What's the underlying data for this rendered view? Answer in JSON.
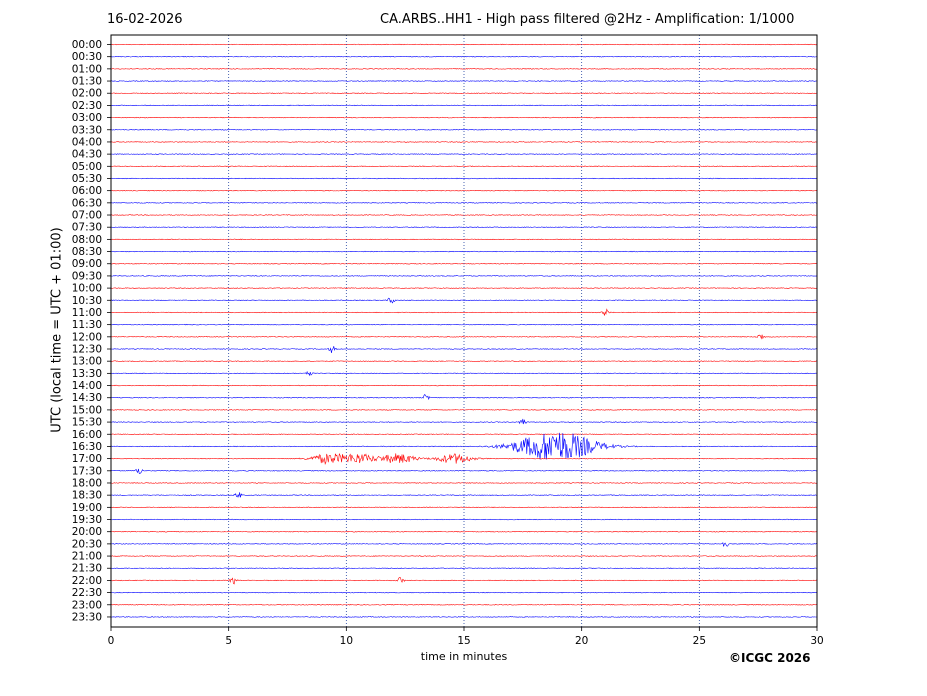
{
  "header": {
    "date": "16-02-2026",
    "title": "CA.ARBS..HH1 - High pass filtered @2Hz - Amplification: 1/1000"
  },
  "footer": {
    "copyright": "©ICGC 2026"
  },
  "chart_data": {
    "type": "line",
    "title": "CA.ARBS..HH1 - High pass filtered @2Hz - Amplification: 1/1000",
    "xlabel": "time in minutes",
    "ylabel": "UTC (local time = UTC + 01:00)",
    "xlim": [
      0,
      30
    ],
    "x_ticks": [
      0,
      5,
      10,
      15,
      20,
      25,
      30
    ],
    "grid": "vertical dotted at 5-minute ticks",
    "trace_colors": [
      "#ff0000",
      "#0000ff"
    ],
    "rows": [
      "00:00",
      "00:30",
      "01:00",
      "01:30",
      "02:00",
      "02:30",
      "03:00",
      "03:30",
      "04:00",
      "04:30",
      "05:00",
      "05:30",
      "06:00",
      "06:30",
      "07:00",
      "07:30",
      "08:00",
      "08:30",
      "09:00",
      "09:30",
      "10:00",
      "10:30",
      "11:00",
      "11:30",
      "12:00",
      "12:30",
      "13:00",
      "13:30",
      "14:00",
      "14:30",
      "15:00",
      "15:30",
      "16:00",
      "16:30",
      "17:00",
      "17:30",
      "18:00",
      "18:30",
      "19:00",
      "19:30",
      "20:00",
      "20:30",
      "21:00",
      "21:30",
      "22:00",
      "22:30",
      "23:00",
      "23:30"
    ],
    "events": [
      {
        "row": "16:30",
        "x": 18.9,
        "amplitude": "large"
      },
      {
        "row": "17:00",
        "x": 9.2,
        "amplitude": "moderate"
      },
      {
        "row": "17:00",
        "x": 10.5,
        "amplitude": "moderate"
      },
      {
        "row": "17:00",
        "x": 12.2,
        "amplitude": "moderate"
      },
      {
        "row": "17:00",
        "x": 14.6,
        "amplitude": "moderate"
      },
      {
        "row": "17:30",
        "x": 1.2,
        "amplitude": "small"
      },
      {
        "row": "13:30",
        "x": 8.4,
        "amplitude": "small"
      },
      {
        "row": "12:30",
        "x": 9.4,
        "amplitude": "small"
      },
      {
        "row": "12:00",
        "x": 27.6,
        "amplitude": "small"
      },
      {
        "row": "11:00",
        "x": 21.0,
        "amplitude": "small"
      },
      {
        "row": "10:30",
        "x": 11.9,
        "amplitude": "small"
      },
      {
        "row": "14:30",
        "x": 13.4,
        "amplitude": "small"
      },
      {
        "row": "15:30",
        "x": 17.5,
        "amplitude": "small"
      },
      {
        "row": "20:30",
        "x": 26.1,
        "amplitude": "small"
      },
      {
        "row": "22:00",
        "x": 12.3,
        "amplitude": "small"
      },
      {
        "row": "22:00",
        "x": 5.2,
        "amplitude": "small"
      },
      {
        "row": "18:30",
        "x": 5.4,
        "amplitude": "small"
      }
    ]
  }
}
